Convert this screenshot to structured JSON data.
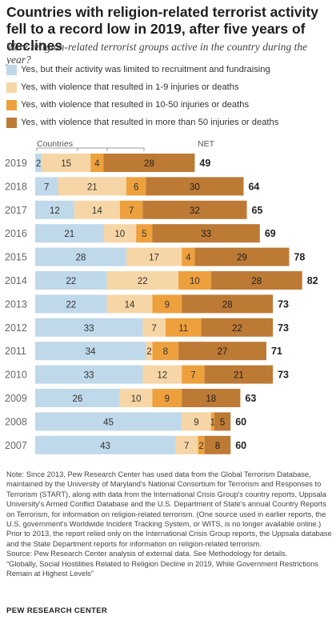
{
  "title": "Countries with religion-related terrorist activity fell to a record low in 2019, after five years of declines",
  "subtitle": "Were religion-related terrorist groups active in the country during the year?",
  "colors": {
    "limited": "#bfd8ea",
    "low": "#f6d6a6",
    "mid": "#eea03d",
    "high": "#bd7a35"
  },
  "chart_data": {
    "type": "bar",
    "stacked": true,
    "orientation": "horizontal",
    "header_label": "Countries",
    "net_label": "NET",
    "categories": [
      "2019",
      "2018",
      "2017",
      "2016",
      "2015",
      "2014",
      "2013",
      "2012",
      "2011",
      "2010",
      "2009",
      "2008",
      "2007"
    ],
    "series": [
      {
        "name": "Yes, but their activity was limited to recruitment and fundraising",
        "values": [
          2,
          7,
          12,
          21,
          28,
          22,
          22,
          33,
          34,
          33,
          26,
          45,
          43
        ]
      },
      {
        "name": "Yes, with violence that resulted in 1-9 injuries or deaths",
        "values": [
          15,
          21,
          14,
          10,
          17,
          22,
          14,
          7,
          2,
          12,
          10,
          9,
          7
        ]
      },
      {
        "name": "Yes, with violence that resulted in 10-50 injuries or deaths",
        "values": [
          4,
          6,
          7,
          5,
          4,
          10,
          9,
          11,
          8,
          7,
          9,
          1,
          2
        ]
      },
      {
        "name": "Yes, with violence that resulted in more than 50 injuries or deaths",
        "values": [
          28,
          30,
          32,
          33,
          29,
          28,
          28,
          22,
          27,
          21,
          18,
          5,
          8
        ]
      }
    ],
    "net": [
      49,
      64,
      65,
      69,
      78,
      82,
      73,
      73,
      71,
      73,
      63,
      60,
      60
    ]
  },
  "notes": {
    "note": "Note: Since 2013, Pew Research Center has used data from the Global Terrorism Database, maintained by the University of Maryland's National Consortium for Terrorism and Responses to Terrorism (START), along with data from the International Crisis Group's country reports, Uppsala University's Armed Conflict Database and the U.S. Department of State's annual Country Reports on Terrorism, for information on religion-related terrorism. (One source used in earlier reports, the U.S. government's Worldwide Incident Tracking System, or WITS, is no longer available online.) Prior to 2013, the report relied only on the International Crisis Group reports, the Uppsala database and the State Department reports for information on religion-related terrorism.",
    "source": "Source: Pew Research Center analysis of external data. See Methodology for details.",
    "report": "“Globally, Social Hostilities Related to Religion Decline in 2019, While Government Restrictions Remain at Highest Levels”",
    "org": "PEW RESEARCH CENTER"
  }
}
